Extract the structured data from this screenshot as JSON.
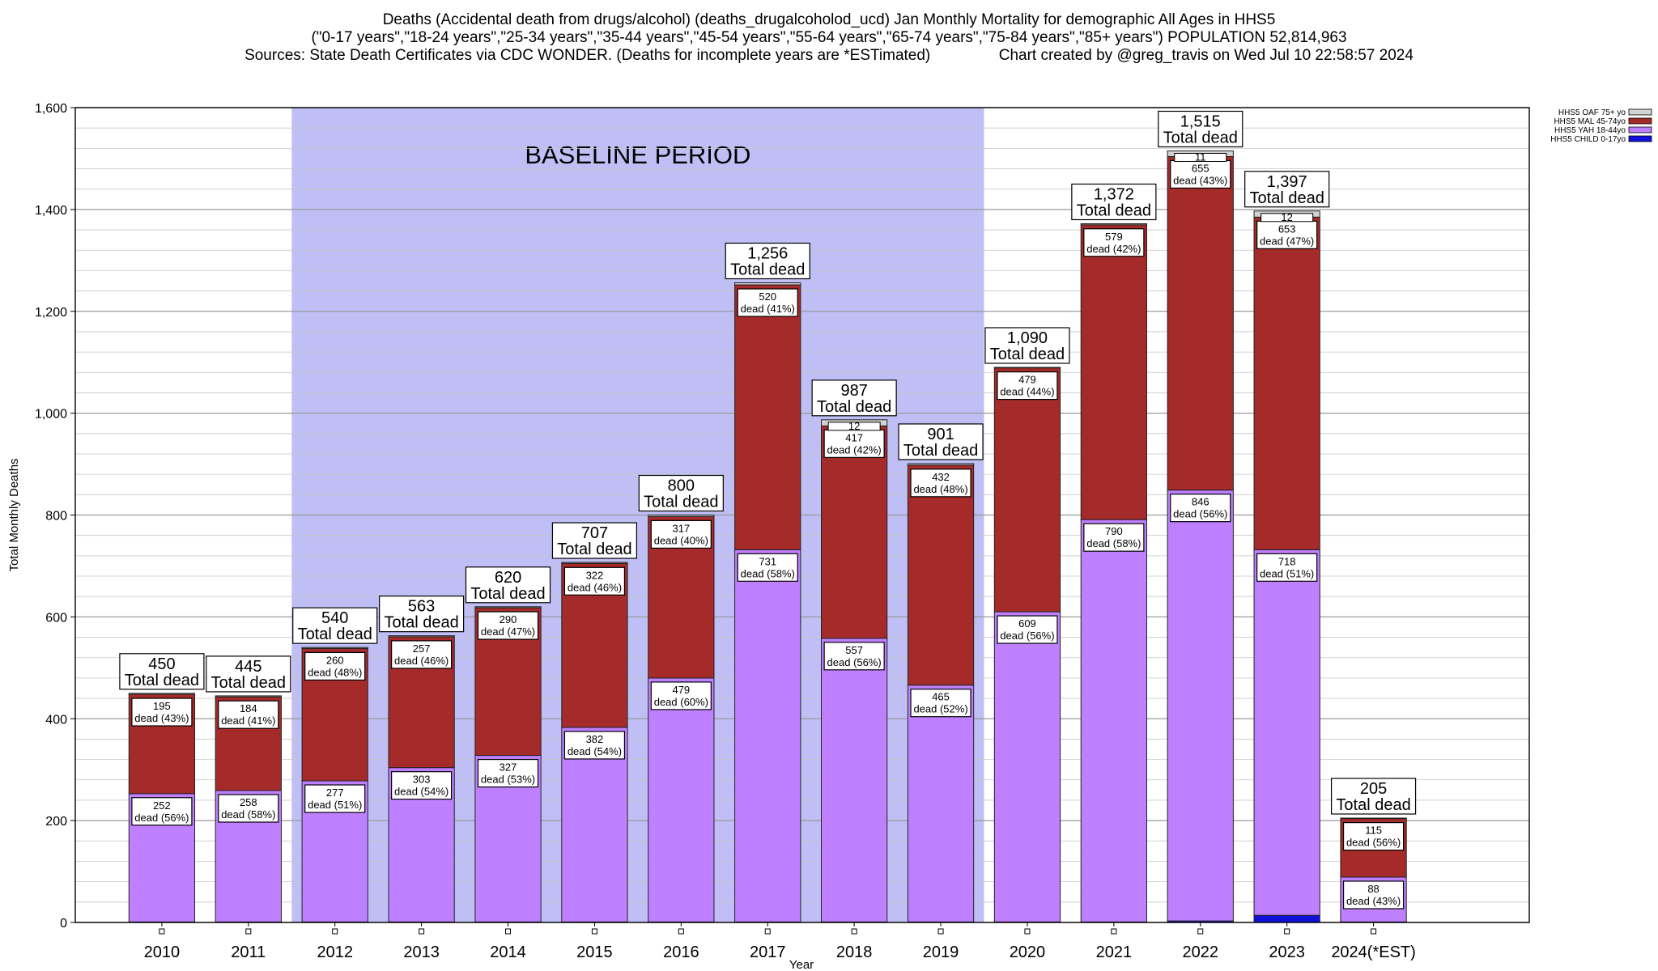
{
  "title_lines": [
    "Deaths (Accidental death from drugs/alcohol) (deaths_drugalcoholod_ucd) Jan Monthly Mortality for demographic All Ages in HHS5",
    "(\"0-17 years\",\"18-24 years\",\"25-34 years\",\"35-44 years\",\"45-54 years\",\"55-64 years\",\"65-74 years\",\"75-84 years\",\"85+ years\") POPULATION 52,814,963",
    "Sources: State Death Certificates via CDC WONDER. (Deaths for incomplete years are *ESTimated)                Chart created by @greg_travis on Wed Jul 10 22:58:57 2024"
  ],
  "chart_data": {
    "type": "bar",
    "stacked": true,
    "xlabel": "Year",
    "ylabel": "Total Monthly Deaths",
    "ylim": [
      0,
      1600
    ],
    "yticks": [
      0,
      200,
      400,
      600,
      800,
      1000,
      1200,
      1400,
      1600
    ],
    "ytick_labels": [
      "0",
      "200",
      "400",
      "600",
      "800",
      "1,000",
      "1,200",
      "1,400",
      "1,600"
    ],
    "grid": true,
    "categories": [
      "2010",
      "2011",
      "2012",
      "2013",
      "2014",
      "2015",
      "2016",
      "2017",
      "2018",
      "2019",
      "2020",
      "2021",
      "2022",
      "2023",
      "2024(*EST)"
    ],
    "series": [
      {
        "name": "HHS5 CHILD 0-17yo",
        "color": "#1010dd",
        "values": [
          1,
          1,
          1,
          1,
          1,
          1,
          1,
          1,
          1,
          1,
          1,
          1,
          3,
          14,
          1
        ]
      },
      {
        "name": "HHS5 YAH 18-44yo",
        "color": "#bf80ff",
        "values": [
          252,
          258,
          277,
          303,
          327,
          382,
          479,
          731,
          557,
          465,
          609,
          790,
          846,
          718,
          88
        ],
        "labels": [
          "252",
          "258",
          "277",
          "303",
          "327",
          "382",
          "479",
          "731",
          "557",
          "465",
          "609",
          "790",
          "846",
          "718",
          "88"
        ],
        "pct": [
          "dead (56%)",
          "dead (58%)",
          "dead (51%)",
          "dead (54%)",
          "dead (53%)",
          "dead (54%)",
          "dead (60%)",
          "dead (58%)",
          "dead (56%)",
          "dead (52%)",
          "dead (56%)",
          "dead (58%)",
          "dead (56%)",
          "dead (51%)",
          "dead (43%)"
        ]
      },
      {
        "name": "HHS5 MAL 45-74yo",
        "color": "#a52a2a",
        "values": [
          195,
          184,
          260,
          257,
          290,
          322,
          317,
          520,
          417,
          432,
          479,
          579,
          655,
          653,
          115
        ],
        "labels": [
          "195",
          "184",
          "260",
          "257",
          "290",
          "322",
          "317",
          "520",
          "417",
          "432",
          "479",
          "579",
          "655",
          "653",
          "115"
        ],
        "pct": [
          "dead (43%)",
          "dead (41%)",
          "dead (48%)",
          "dead (46%)",
          "dead (47%)",
          "dead (46%)",
          "dead (40%)",
          "dead (41%)",
          "dead (42%)",
          "dead (48%)",
          "dead (44%)",
          "dead (42%)",
          "dead (43%)",
          "dead (47%)",
          "dead (56%)"
        ]
      },
      {
        "name": "HHS5 OAF 75+ yo",
        "color": "#d3d3d3",
        "values": [
          2,
          2,
          2,
          2,
          2,
          2,
          3,
          4,
          12,
          3,
          1,
          2,
          11,
          12,
          1
        ],
        "labels": [
          "",
          "",
          "",
          "",
          "",
          "",
          "",
          "",
          "12",
          "",
          "",
          "",
          "11",
          "12",
          ""
        ]
      }
    ],
    "totals": [
      450,
      445,
      540,
      563,
      620,
      707,
      800,
      1256,
      987,
      901,
      1090,
      1372,
      1515,
      1397,
      205
    ],
    "total_labels": [
      "450",
      "445",
      "540",
      "563",
      "620",
      "707",
      "800",
      "1,256",
      "987",
      "901",
      "1,090",
      "1,372",
      "1,515",
      "1,397",
      "205"
    ],
    "total_suffix": "Total dead",
    "baseline": {
      "label": "BASELINE PERIOD",
      "from": "2012",
      "to": "2019",
      "color": "#bfbff5"
    },
    "legend_position": "top-right",
    "legend_order": [
      "HHS5 OAF 75+ yo",
      "HHS5 MAL 45-74yo",
      "HHS5 YAH 18-44yo",
      "HHS5 CHILD 0-17yo"
    ]
  }
}
